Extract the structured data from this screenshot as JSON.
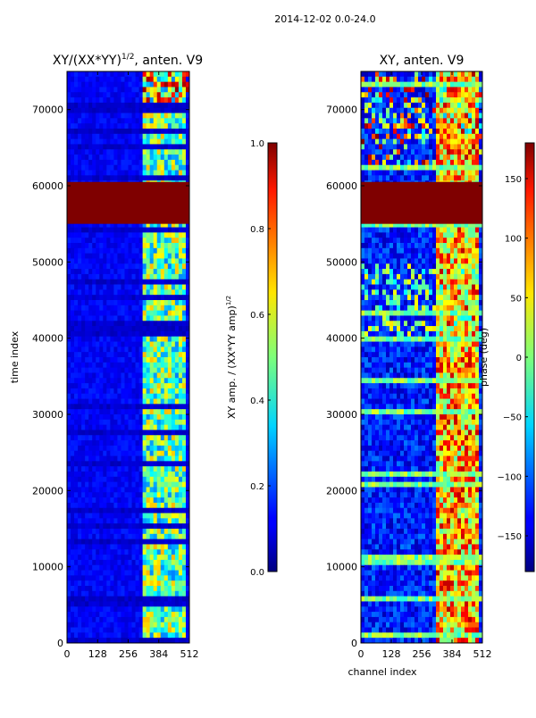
{
  "figure": {
    "suptitle": "2014-12-02 0.0-24.0"
  },
  "chart_data": [
    {
      "type": "heatmap",
      "title_main": "XY/(XX*YY)",
      "title_sup": "1/2",
      "title_suffix": ", anten. V9",
      "xlabel": "",
      "ylabel": "time index",
      "xlim": [
        0,
        512
      ],
      "ylim": [
        0,
        75000
      ],
      "xticks": [
        0,
        128,
        256,
        384,
        512
      ],
      "yticks": [
        0,
        10000,
        20000,
        30000,
        40000,
        50000,
        60000,
        70000
      ],
      "flagged_band": [
        55000,
        60500
      ],
      "colorbar": {
        "label_main": "XY amp. / (XX*YY amp)",
        "label_sup": "1/2",
        "range": [
          0.0,
          1.0
        ],
        "ticks": [
          "0.0",
          "0.2",
          "0.4",
          "0.6",
          "0.8",
          "1.0"
        ]
      }
    },
    {
      "type": "heatmap",
      "title": "XY, anten. V9",
      "xlabel": "channel index",
      "ylabel": "",
      "xlim": [
        0,
        512
      ],
      "ylim": [
        0,
        75000
      ],
      "xticks": [
        0,
        128,
        256,
        384,
        512
      ],
      "yticks": [
        0,
        10000,
        20000,
        30000,
        40000,
        50000,
        60000,
        70000
      ],
      "flagged_band": [
        55000,
        60500
      ],
      "colorbar": {
        "label": "phase (deg)",
        "range": [
          -180,
          180
        ],
        "ticks": [
          "−150",
          "−100",
          "−50",
          "0",
          "50",
          "100",
          "150"
        ]
      }
    }
  ]
}
